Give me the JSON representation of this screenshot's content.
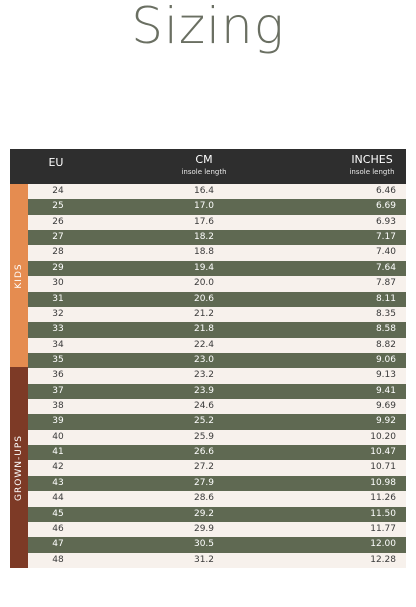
{
  "title": "Sizing",
  "header": {
    "eu": "EU",
    "cm": "CM",
    "cm_sub": "insole length",
    "inches": "INCHES",
    "inches_sub": "insole length"
  },
  "groups": {
    "kids": "KIDS",
    "grown_ups": "GROWN-UPS"
  },
  "colors": {
    "header_bg": "#2e2e2e",
    "row_light": "#f7f1ec",
    "row_dark": "#5f6952",
    "kids_band": "#e58c50",
    "grown_band": "#7d3a26",
    "title": "#6a6f62"
  },
  "rows": [
    {
      "eu": "24",
      "cm": "16.4",
      "in": "6.46"
    },
    {
      "eu": "25",
      "cm": "17.0",
      "in": "6.69"
    },
    {
      "eu": "26",
      "cm": "17.6",
      "in": "6.93"
    },
    {
      "eu": "27",
      "cm": "18.2",
      "in": "7.17"
    },
    {
      "eu": "28",
      "cm": "18.8",
      "in": "7.40"
    },
    {
      "eu": "29",
      "cm": "19.4",
      "in": "7.64"
    },
    {
      "eu": "30",
      "cm": "20.0",
      "in": "7.87"
    },
    {
      "eu": "31",
      "cm": "20.6",
      "in": "8.11"
    },
    {
      "eu": "32",
      "cm": "21.2",
      "in": "8.35"
    },
    {
      "eu": "33",
      "cm": "21.8",
      "in": "8.58"
    },
    {
      "eu": "34",
      "cm": "22.4",
      "in": "8.82"
    },
    {
      "eu": "35",
      "cm": "23.0",
      "in": "9.06"
    },
    {
      "eu": "36",
      "cm": "23.2",
      "in": "9.13"
    },
    {
      "eu": "37",
      "cm": "23.9",
      "in": "9.41"
    },
    {
      "eu": "38",
      "cm": "24.6",
      "in": "9.69"
    },
    {
      "eu": "39",
      "cm": "25.2",
      "in": "9.92"
    },
    {
      "eu": "40",
      "cm": "25.9",
      "in": "10.20"
    },
    {
      "eu": "41",
      "cm": "26.6",
      "in": "10.47"
    },
    {
      "eu": "42",
      "cm": "27.2",
      "in": "10.71"
    },
    {
      "eu": "43",
      "cm": "27.9",
      "in": "10.98"
    },
    {
      "eu": "44",
      "cm": "28.6",
      "in": "11.26"
    },
    {
      "eu": "45",
      "cm": "29.2",
      "in": "11.50"
    },
    {
      "eu": "46",
      "cm": "29.9",
      "in": "11.77"
    },
    {
      "eu": "47",
      "cm": "30.5",
      "in": "12.00"
    },
    {
      "eu": "48",
      "cm": "31.2",
      "in": "12.28"
    }
  ]
}
